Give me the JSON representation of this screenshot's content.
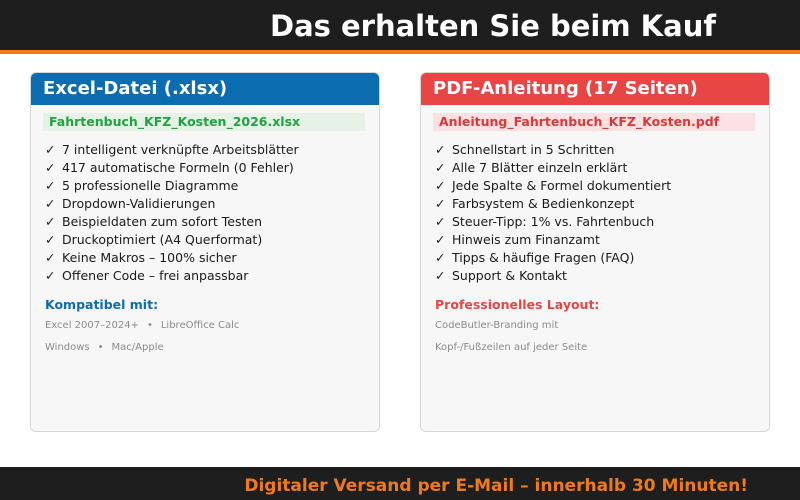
{
  "header": {
    "title": "Das erhalten Sie beim Kauf"
  },
  "excel": {
    "title": "Excel-Datei (.xlsx)",
    "filename": "Fahrtenbuch_KFZ_Kosten_2026.xlsx",
    "check_icon": "✓",
    "features": [
      "7 intelligent verknüpfte Arbeitsblätter",
      "417 automatische Formeln (0 Fehler)",
      "5 professionelle Diagramme",
      "Dropdown-Validierungen",
      "Beispieldaten zum sofort Testen",
      "Druckoptimiert (A4 Querformat)",
      "Keine Makros – 100% sicher",
      "Offener Code – frei anpassbar"
    ],
    "compat_title": "Kompatibel mit:",
    "compat_line1": [
      "Excel 2007–2024+",
      "LibreOffice Calc"
    ],
    "compat_line2": [
      "Windows",
      "Mac/Apple"
    ],
    "separator": "•"
  },
  "pdf": {
    "title": "PDF-Anleitung (17 Seiten)",
    "filename": "Anleitung_Fahrtenbuch_KFZ_Kosten.pdf",
    "check_icon": "✓",
    "features": [
      "Schnellstart in 5 Schritten",
      "Alle 7 Blätter einzeln erklärt",
      "Jede Spalte & Formel dokumentiert",
      "Farbsystem & Bedienkonzept",
      "Steuer-Tipp: 1% vs. Fahrtenbuch",
      "Hinweis zum Finanzamt",
      "Tipps & häufige Fragen (FAQ)",
      "Support & Kontakt"
    ],
    "layout_title": "Professionelles Layout:",
    "layout_line1": "CodeButler-Branding mit",
    "layout_line2": "Kopf-/Fußzeilen auf jeder Seite"
  },
  "footer": {
    "text": "Digitaler Versand per E-Mail – innerhalb 30 Minuten!"
  },
  "colors": {
    "dark": "#1e1e1e",
    "accent_orange": "#f07a1a",
    "excel_blue": "#0b6db0",
    "excel_green": "#22a140",
    "pdf_red": "#e84545"
  }
}
